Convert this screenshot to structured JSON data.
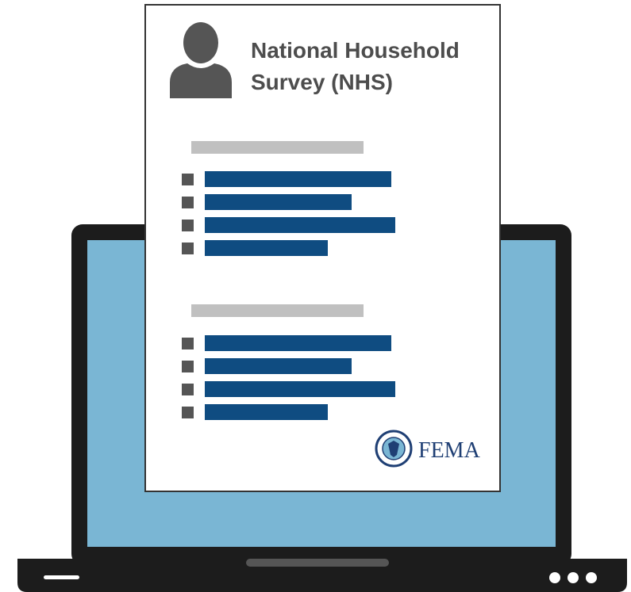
{
  "document": {
    "title_lines": [
      "National Household",
      "Survey (NHS)"
    ],
    "logo_text": "FEMA"
  }
}
